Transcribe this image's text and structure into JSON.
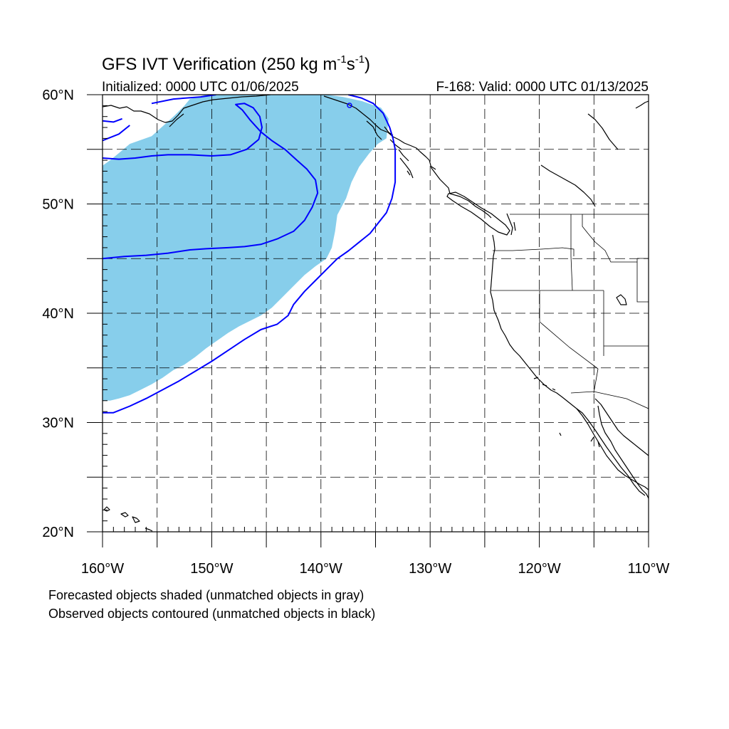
{
  "title": {
    "main": "GFS IVT Verification (250 kg m",
    "exp1": "-1",
    "mid": "s",
    "exp2": "-1",
    "close": ")"
  },
  "subtitle_left": "Initialized: 0000 UTC 01/06/2025",
  "subtitle_right": "F-168: Valid: 0000 UTC 01/13/2025",
  "map": {
    "lon_range": [
      -160,
      -110
    ],
    "lat_range": [
      20,
      60
    ],
    "grid_style": "dashed",
    "lat_labels": [
      {
        "lat": 60,
        "text": "60°N"
      },
      {
        "lat": 50,
        "text": "50°N"
      },
      {
        "lat": 40,
        "text": "40°N"
      },
      {
        "lat": 30,
        "text": "30°N"
      },
      {
        "lat": 20,
        "text": "20°N"
      }
    ],
    "lon_labels": [
      {
        "lon": -160,
        "text": "160°W"
      },
      {
        "lon": -150,
        "text": "150°W"
      },
      {
        "lon": -140,
        "text": "140°W"
      },
      {
        "lon": -130,
        "text": "130°W"
      },
      {
        "lon": -120,
        "text": "120°W"
      },
      {
        "lon": -110,
        "text": "110°W"
      }
    ],
    "forecast_object": {
      "color": "#87ceeb",
      "outline_lonlat": [
        [
          -160,
          32
        ],
        [
          -159.3,
          32
        ],
        [
          -158.5,
          32.2
        ],
        [
          -157.5,
          32.5
        ],
        [
          -156.5,
          33
        ],
        [
          -155.5,
          33.5
        ],
        [
          -154.5,
          34.1
        ],
        [
          -153.5,
          34.8
        ],
        [
          -152.5,
          35.3
        ],
        [
          -151.5,
          36
        ],
        [
          -150.5,
          36.8
        ],
        [
          -149.5,
          37.5
        ],
        [
          -148.5,
          38.2
        ],
        [
          -147.5,
          38.8
        ],
        [
          -146.5,
          39.3
        ],
        [
          -145.5,
          39.8
        ],
        [
          -144.5,
          40.5
        ],
        [
          -143.5,
          41.5
        ],
        [
          -142.5,
          42.5
        ],
        [
          -141.5,
          43.5
        ],
        [
          -140.5,
          44.3
        ],
        [
          -139.5,
          45
        ],
        [
          -139,
          46
        ],
        [
          -138.7,
          47.5
        ],
        [
          -138.5,
          49
        ],
        [
          -137.7,
          50.5
        ],
        [
          -137.2,
          52
        ],
        [
          -136.5,
          53.4
        ],
        [
          -135.6,
          54.6
        ],
        [
          -134.8,
          55.5
        ],
        [
          -134,
          56
        ],
        [
          -133.8,
          57.8
        ],
        [
          -134.5,
          58.8
        ],
        [
          -136.2,
          59.4
        ],
        [
          -138,
          59.8
        ],
        [
          -139.5,
          60
        ],
        [
          -150.5,
          60
        ],
        [
          -152,
          59.6
        ],
        [
          -152.5,
          59
        ],
        [
          -153.4,
          58.1
        ],
        [
          -154.5,
          57.1
        ],
        [
          -155.5,
          56.2
        ],
        [
          -157.5,
          55.5
        ],
        [
          -158.2,
          54.9
        ],
        [
          -159.3,
          54
        ],
        [
          -160,
          53.5
        ]
      ]
    },
    "observed_contours": {
      "color": "#0000ff",
      "lines_lonlat": [
        [
          [
            -160,
            30.9
          ],
          [
            -159,
            30.9
          ],
          [
            -157.5,
            31.5
          ],
          [
            -156,
            32.2
          ],
          [
            -154.5,
            33
          ],
          [
            -153,
            33.8
          ],
          [
            -151.5,
            34.7
          ],
          [
            -150,
            35.6
          ],
          [
            -148.5,
            36.6
          ],
          [
            -147,
            37.6
          ],
          [
            -145.5,
            38.5
          ],
          [
            -144,
            39
          ],
          [
            -143,
            39.8
          ],
          [
            -142.5,
            40.8
          ],
          [
            -141.5,
            42
          ],
          [
            -140.5,
            43
          ],
          [
            -139.5,
            44
          ],
          [
            -138.5,
            45
          ],
          [
            -137.5,
            45.7
          ],
          [
            -136.5,
            46.5
          ],
          [
            -135.5,
            47.3
          ],
          [
            -134.8,
            48.2
          ],
          [
            -134,
            49.2
          ],
          [
            -133.5,
            50.5
          ],
          [
            -133.2,
            52
          ],
          [
            -133.2,
            53.6
          ],
          [
            -133.2,
            55
          ],
          [
            -133.4,
            56
          ],
          [
            -133.7,
            57
          ],
          [
            -134.3,
            58.3
          ],
          [
            -135.2,
            59.2
          ],
          [
            -136.3,
            59.7
          ],
          [
            -137.5,
            60
          ]
        ],
        [
          [
            -160,
            45
          ],
          [
            -158,
            45.2
          ],
          [
            -156,
            45.3
          ],
          [
            -154,
            45.5
          ],
          [
            -152,
            45.8
          ],
          [
            -150.5,
            45.9
          ],
          [
            -148.5,
            46
          ],
          [
            -147,
            46.1
          ],
          [
            -145.5,
            46.3
          ],
          [
            -144,
            46.8
          ],
          [
            -142.5,
            47.5
          ],
          [
            -141.5,
            48.5
          ],
          [
            -140.8,
            49.7
          ],
          [
            -140.3,
            51
          ],
          [
            -140.5,
            52.2
          ],
          [
            -141.3,
            53.2
          ],
          [
            -142.2,
            54
          ],
          [
            -143.3,
            55
          ],
          [
            -144.5,
            55.8
          ],
          [
            -145.5,
            56.6
          ],
          [
            -146.5,
            57.7
          ],
          [
            -147.2,
            58.6
          ],
          [
            -147.8,
            59.1
          ],
          [
            -147,
            59.2
          ],
          [
            -146.2,
            58.8
          ],
          [
            -145.6,
            58
          ],
          [
            -145.4,
            57
          ],
          [
            -145.7,
            55.9
          ],
          [
            -146.8,
            55
          ],
          [
            -148.3,
            54.5
          ],
          [
            -150,
            54.4
          ],
          [
            -152,
            54.5
          ],
          [
            -154,
            54.5
          ],
          [
            -155.5,
            54.4
          ],
          [
            -157,
            54.2
          ],
          [
            -158.5,
            54.1
          ],
          [
            -160,
            54.2
          ]
        ],
        [
          [
            -160,
            57.6
          ],
          [
            -159,
            57.5
          ],
          [
            -158.2,
            57.8
          ]
        ],
        [
          [
            -160,
            55.8
          ],
          [
            -158.5,
            56.4
          ],
          [
            -157.5,
            57.2
          ]
        ],
        [
          [
            -155.5,
            59.2
          ],
          [
            -153.5,
            59.6
          ],
          [
            -151,
            59.8
          ],
          [
            -149.6,
            60
          ]
        ]
      ]
    }
  },
  "footnote_line1": "Forecasted objects shaded (unmatched objects in gray)",
  "footnote_line2": "Observed objects contoured (unmatched objects in black)"
}
